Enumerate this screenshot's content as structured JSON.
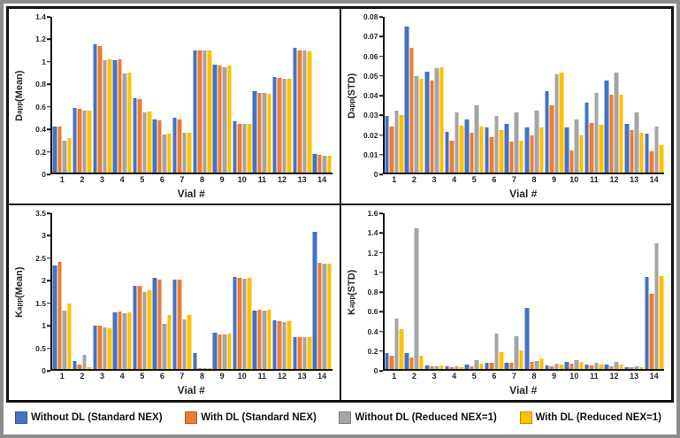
{
  "legend": {
    "items": [
      {
        "label": "Without DL (Standard NEX)",
        "color": "#4472C4"
      },
      {
        "label": "With DL (Standard NEX)",
        "color": "#ED7D31"
      },
      {
        "label": "Without DL (Reduced NEX=1)",
        "color": "#A5A5A5"
      },
      {
        "label": "With DL (Reduced NEX=1)",
        "color": "#FFC000"
      }
    ]
  },
  "chart_data": [
    {
      "type": "bar",
      "ylabel_base": "D",
      "ylabel_sub": "app",
      "ylabel_rest": " (Mean)",
      "xlabel": "Vial #",
      "ylim": [
        0,
        1.4
      ],
      "ytick_step": 0.2,
      "grid": false,
      "legend_position": "bottom-shared",
      "categories": [
        "1",
        "2",
        "3",
        "4",
        "5",
        "6",
        "7",
        "8",
        "9",
        "10",
        "11",
        "12",
        "13",
        "14"
      ],
      "series": [
        {
          "name": "Without DL (Standard NEX)",
          "color": "#4472C4",
          "values": [
            0.41,
            0.58,
            1.15,
            1.01,
            0.67,
            0.48,
            0.49,
            1.1,
            0.97,
            0.46,
            0.73,
            0.86,
            1.12,
            0.17
          ]
        },
        {
          "name": "With DL (Standard NEX)",
          "color": "#ED7D31",
          "values": [
            0.41,
            0.57,
            1.14,
            1.02,
            0.66,
            0.47,
            0.48,
            1.1,
            0.96,
            0.44,
            0.72,
            0.85,
            1.1,
            0.16
          ]
        },
        {
          "name": "Without DL (Reduced NEX=1)",
          "color": "#A5A5A5",
          "values": [
            0.29,
            0.56,
            1.01,
            0.89,
            0.54,
            0.34,
            0.36,
            1.1,
            0.95,
            0.44,
            0.72,
            0.84,
            1.1,
            0.15
          ]
        },
        {
          "name": "With DL (Reduced NEX=1)",
          "color": "#FFC000",
          "values": [
            0.31,
            0.56,
            1.02,
            0.9,
            0.55,
            0.35,
            0.36,
            1.1,
            0.96,
            0.44,
            0.71,
            0.84,
            1.09,
            0.15
          ]
        }
      ]
    },
    {
      "type": "bar",
      "ylabel_base": "D",
      "ylabel_sub": "app",
      "ylabel_rest": " (STD)",
      "xlabel": "Vial #",
      "ylim": [
        0,
        0.08
      ],
      "ytick_step": 0.01,
      "grid": false,
      "legend_position": "bottom-shared",
      "categories": [
        "1",
        "2",
        "3",
        "4",
        "5",
        "6",
        "7",
        "8",
        "9",
        "10",
        "11",
        "12",
        "13",
        "14"
      ],
      "series": [
        {
          "name": "Without DL (Standard NEX)",
          "color": "#4472C4",
          "values": [
            0.029,
            0.075,
            0.052,
            0.021,
            0.0275,
            0.023,
            0.025,
            0.023,
            0.042,
            0.023,
            0.036,
            0.0475,
            0.025,
            0.02
          ]
        },
        {
          "name": "With DL (Standard NEX)",
          "color": "#ED7D31",
          "values": [
            0.0235,
            0.064,
            0.0475,
            0.0165,
            0.0205,
            0.018,
            0.016,
            0.019,
            0.0345,
            0.0115,
            0.0255,
            0.04,
            0.022,
            0.011
          ]
        },
        {
          "name": "Without DL (Reduced NEX=1)",
          "color": "#A5A5A5",
          "values": [
            0.032,
            0.0495,
            0.0535,
            0.031,
            0.0345,
            0.029,
            0.031,
            0.032,
            0.0505,
            0.0275,
            0.041,
            0.0515,
            0.031,
            0.0235
          ]
        },
        {
          "name": "With DL (Reduced NEX=1)",
          "color": "#FFC000",
          "values": [
            0.0295,
            0.048,
            0.054,
            0.024,
            0.0235,
            0.022,
            0.0165,
            0.023,
            0.0515,
            0.019,
            0.0245,
            0.04,
            0.0205,
            0.014
          ]
        }
      ]
    },
    {
      "type": "bar",
      "ylabel_base": "K",
      "ylabel_sub": "app",
      "ylabel_rest": " (Mean)",
      "xlabel": "Vial #",
      "ylim": [
        0,
        3.5
      ],
      "ytick_step": 0.5,
      "grid": false,
      "legend_position": "bottom-shared",
      "categories": [
        "1",
        "2",
        "3",
        "4",
        "5",
        "6",
        "7",
        "8",
        "9",
        "10",
        "11",
        "12",
        "13",
        "14"
      ],
      "series": [
        {
          "name": "Without DL (Standard NEX)",
          "color": "#4472C4",
          "values": [
            2.32,
            0.18,
            0.98,
            1.28,
            1.86,
            2.04,
            2.01,
            0.35,
            0.81,
            2.06,
            1.32,
            1.1,
            0.72,
            3.08
          ]
        },
        {
          "name": "With DL (Standard NEX)",
          "color": "#ED7D31",
          "values": [
            2.41,
            0.09,
            0.98,
            1.3,
            1.86,
            2.01,
            2.01,
            0.02,
            0.78,
            2.04,
            1.34,
            1.07,
            0.72,
            2.39
          ]
        },
        {
          "name": "Without DL (Reduced NEX=1)",
          "color": "#A5A5A5",
          "values": [
            1.32,
            0.31,
            0.93,
            1.26,
            1.73,
            1.02,
            1.11,
            0.02,
            0.78,
            2.03,
            1.32,
            1.05,
            0.72,
            2.37
          ]
        },
        {
          "name": "With DL (Reduced NEX=1)",
          "color": "#FFC000",
          "values": [
            1.47,
            0.05,
            0.92,
            1.27,
            1.77,
            1.22,
            1.22,
            0.03,
            0.8,
            2.04,
            1.34,
            1.07,
            0.72,
            2.37
          ]
        }
      ]
    },
    {
      "type": "bar",
      "ylabel_base": "K",
      "ylabel_sub": "app",
      "ylabel_rest": " (STD)",
      "xlabel": "Vial #",
      "ylim": [
        0,
        1.6
      ],
      "ytick_step": 0.2,
      "grid": false,
      "legend_position": "bottom-shared",
      "categories": [
        "1",
        "2",
        "3",
        "4",
        "5",
        "6",
        "7",
        "8",
        "9",
        "10",
        "11",
        "12",
        "13",
        "14"
      ],
      "series": [
        {
          "name": "Without DL (Standard NEX)",
          "color": "#4472C4",
          "values": [
            0.16,
            0.165,
            0.035,
            0.025,
            0.045,
            0.06,
            0.06,
            0.625,
            0.035,
            0.075,
            0.045,
            0.045,
            0.02,
            0.95
          ]
        },
        {
          "name": "With DL (Standard NEX)",
          "color": "#ED7D31",
          "values": [
            0.135,
            0.12,
            0.025,
            0.02,
            0.025,
            0.06,
            0.06,
            0.075,
            0.03,
            0.055,
            0.035,
            0.03,
            0.015,
            0.77
          ]
        },
        {
          "name": "Without DL (Reduced NEX=1)",
          "color": "#A5A5A5",
          "values": [
            0.52,
            1.45,
            0.03,
            0.03,
            0.095,
            0.36,
            0.34,
            0.085,
            0.055,
            0.095,
            0.065,
            0.075,
            0.03,
            1.29
          ]
        },
        {
          "name": "With DL (Reduced NEX=1)",
          "color": "#FFC000",
          "values": [
            0.41,
            0.135,
            0.035,
            0.02,
            0.055,
            0.175,
            0.19,
            0.105,
            0.045,
            0.075,
            0.045,
            0.045,
            0.015,
            0.955
          ]
        }
      ]
    }
  ]
}
